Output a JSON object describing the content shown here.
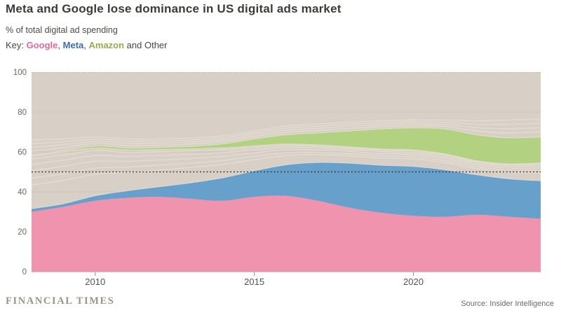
{
  "header": {
    "title": "Meta and Google lose dominance in US digital ads market",
    "subtitle": "% of total digital ad spending",
    "key": {
      "prefix": "Key: ",
      "google": "Google",
      "meta": "Meta",
      "amazon": "Amazon",
      "comma": ", ",
      "suffix": " and Other",
      "colors": {
        "google": "#e3689c",
        "meta": "#3d6ca6",
        "amazon": "#93ad4e",
        "text": "#4b4641"
      }
    }
  },
  "footer": {
    "brand": "FINANCIAL TIMES",
    "source": "Source: Insider Intelligence"
  },
  "chart_data": {
    "type": "area",
    "stacked": true,
    "title": "Meta and Google lose dominance in US digital ads market",
    "ylabel": "% of total digital ad spending",
    "x_years": [
      2008,
      2009,
      2010,
      2011,
      2012,
      2013,
      2014,
      2015,
      2016,
      2017,
      2018,
      2019,
      2020,
      2021,
      2022,
      2023,
      2024
    ],
    "series": [
      {
        "name": "Google",
        "color": "#f093af",
        "values": [
          30,
          32.5,
          35.5,
          37,
          37.5,
          36.5,
          35.5,
          37.5,
          38,
          35.5,
          32,
          29.5,
          28,
          27.5,
          28.5,
          27.5,
          26.5
        ]
      },
      {
        "name": "Meta",
        "color": "#66a0cb",
        "values": [
          1.5,
          1.5,
          2.5,
          3.5,
          5,
          8,
          11.5,
          13,
          15.5,
          19.2,
          22.3,
          23.8,
          24.7,
          23.5,
          20,
          19,
          19
        ]
      },
      {
        "name": "Amazon",
        "color": "#b2d282",
        "values": [
          0.2,
          0.5,
          1,
          1,
          1,
          1.3,
          2,
          3.5,
          4.5,
          6,
          8,
          10,
          11,
          12.5,
          13,
          13,
          13
        ],
        "stack_base": [
          58,
          60,
          62,
          61,
          61.2,
          61.5,
          62,
          63,
          64,
          63.5,
          62.5,
          61.5,
          61,
          59,
          55.5,
          54,
          54.5
        ]
      }
    ],
    "other": {
      "name": "Other",
      "color": "#d8d0c6"
    },
    "reference_line": {
      "value": 50
    },
    "ylim": [
      0,
      100
    ],
    "yticks": [
      0,
      20,
      40,
      60,
      80,
      100
    ],
    "xticks": [
      2010,
      2015,
      2020
    ],
    "grid": "horizontal",
    "legend_position": "top-left-key-line",
    "render_hints": {
      "others_top": [
        66,
        66.5,
        67.5,
        66.5,
        66.5,
        67,
        68,
        70.5,
        73,
        74,
        75,
        75.5,
        76,
        76,
        75.5,
        76,
        76.5
      ],
      "below_fractions": [
        0.45,
        0.58,
        0.72,
        0.84,
        0.94
      ],
      "above_fractions": [
        0.28,
        0.52,
        0.76,
        1
      ],
      "plot_bg": "#d8d0c6",
      "faint_line_color": "#e5ded3",
      "grid_color": "#cdc5ba",
      "top_dotted_color": "#a9a095",
      "ref_line_color": "#38332e",
      "edge_stroke": "#eae3d9",
      "axis_text_color": "#6d6660",
      "xaxis_text_color": "#57524c",
      "tick_color": "#90897f",
      "baseline_color": "#c9c1b6"
    }
  }
}
